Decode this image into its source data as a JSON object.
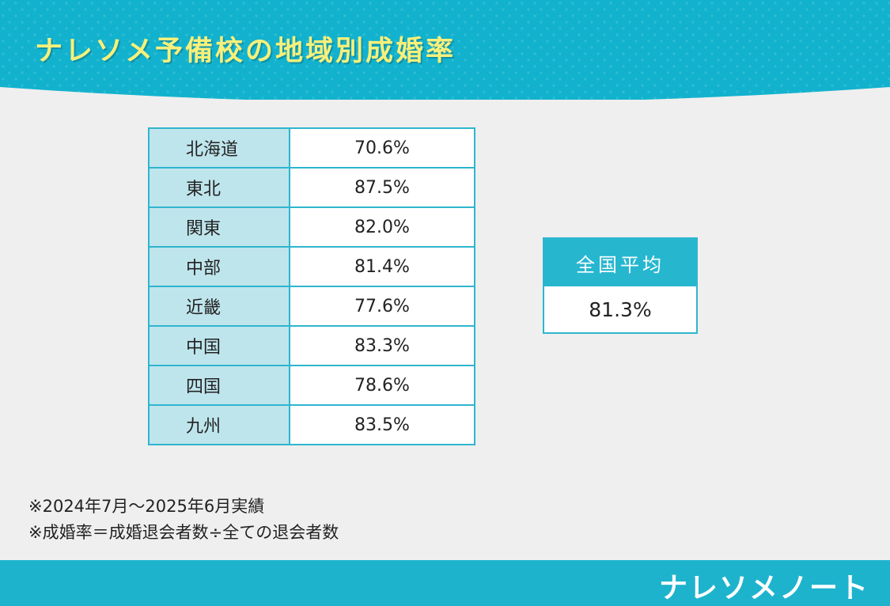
{
  "header": {
    "title": "ナレソメ予備校の地域別成婚率",
    "background_color": "#12b2ce",
    "title_color": "#f7f07a"
  },
  "regions": [
    {
      "name": "北海道",
      "rate": "70.6%"
    },
    {
      "name": "東北",
      "rate": "87.5%"
    },
    {
      "name": "関東",
      "rate": "82.0%"
    },
    {
      "name": "中部",
      "rate": "81.4%"
    },
    {
      "name": "近畿",
      "rate": "77.6%"
    },
    {
      "name": "中国",
      "rate": "83.3%"
    },
    {
      "name": "四国",
      "rate": "78.6%"
    },
    {
      "name": "九州",
      "rate": "83.5%"
    }
  ],
  "national_average": {
    "label": "全国平均",
    "value": "81.3%"
  },
  "notes": [
    "※2024年7月〜2025年6月実績",
    "※成婚率＝成婚退会者数÷全ての退会者数"
  ],
  "footer": {
    "brand": "ナレソメノート",
    "background_color": "#1db3cd"
  }
}
